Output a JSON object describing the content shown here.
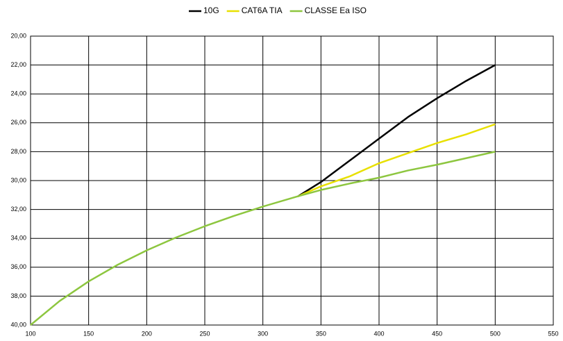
{
  "chart_data": {
    "type": "line",
    "x": [
      100,
      125,
      150,
      175,
      200,
      225,
      250,
      275,
      300,
      330,
      350,
      375,
      400,
      425,
      450,
      475,
      500
    ],
    "series": [
      {
        "name": "10G",
        "color": "#000000",
        "values": [
          null,
          null,
          null,
          null,
          null,
          null,
          null,
          null,
          null,
          31.1,
          30.1,
          28.6,
          27.1,
          25.6,
          24.3,
          23.1,
          22.0
        ]
      },
      {
        "name": "CAT6A TIA",
        "color": "#e8e000",
        "values": [
          null,
          null,
          null,
          null,
          null,
          null,
          null,
          null,
          null,
          31.1,
          30.4,
          29.7,
          28.8,
          28.1,
          27.4,
          26.8,
          26.1
        ]
      },
      {
        "name": "CLASSE Ea ISO",
        "color": "#8dc63f",
        "values": [
          40.0,
          38.34,
          36.98,
          35.83,
          34.83,
          33.95,
          33.16,
          32.45,
          31.8,
          31.09,
          30.65,
          30.2,
          29.8,
          29.3,
          28.9,
          28.45,
          28.0
        ]
      }
    ],
    "xlim": [
      100,
      550
    ],
    "xticks": [
      100,
      150,
      200,
      250,
      300,
      350,
      400,
      450,
      500,
      550
    ],
    "ylim": [
      20,
      40
    ],
    "y_inverted": true,
    "yticks": [
      {
        "value": 20,
        "label": "20,00"
      },
      {
        "value": 22,
        "label": "22,00"
      },
      {
        "value": 24,
        "label": "24,00"
      },
      {
        "value": 26,
        "label": "26,00"
      },
      {
        "value": 28,
        "label": "28,00"
      },
      {
        "value": 30,
        "label": "30,00"
      },
      {
        "value": 32,
        "label": "32,00"
      },
      {
        "value": 34,
        "label": "34,00"
      },
      {
        "value": 36,
        "label": "36,00"
      },
      {
        "value": 38,
        "label": "38,00"
      },
      {
        "value": 40,
        "label": "40,00"
      }
    ],
    "grid": true,
    "legend": "top"
  }
}
